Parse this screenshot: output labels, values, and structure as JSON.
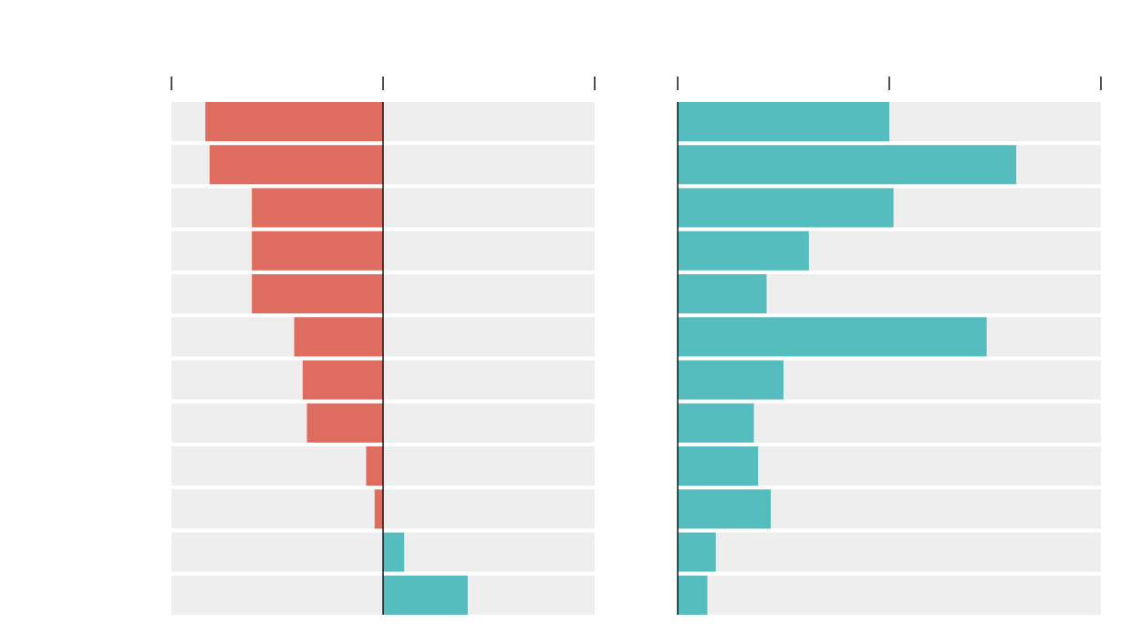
{
  "chart_data": [
    {
      "type": "bar",
      "orientation": "horizontal",
      "xlim": [
        -1,
        1
      ],
      "ticks": [
        -1,
        0,
        1
      ],
      "grid": false,
      "values": [
        -0.84,
        -0.82,
        -0.62,
        -0.62,
        -0.62,
        -0.42,
        -0.38,
        -0.36,
        -0.08,
        -0.04,
        0.1,
        0.4
      ],
      "colors": {
        "negative": "#de6d5f",
        "positive": "#56bdbe",
        "track": "#eeeeee",
        "axis": "#111111"
      }
    },
    {
      "type": "bar",
      "orientation": "horizontal",
      "xlim": [
        0,
        2
      ],
      "ticks": [
        0,
        1,
        2
      ],
      "grid": false,
      "values": [
        1.0,
        1.6,
        1.02,
        0.62,
        0.42,
        1.46,
        0.5,
        0.36,
        0.38,
        0.44,
        0.18,
        0.14
      ],
      "colors": {
        "positive": "#56bdbe",
        "track": "#eeeeee",
        "axis": "#111111"
      }
    }
  ]
}
